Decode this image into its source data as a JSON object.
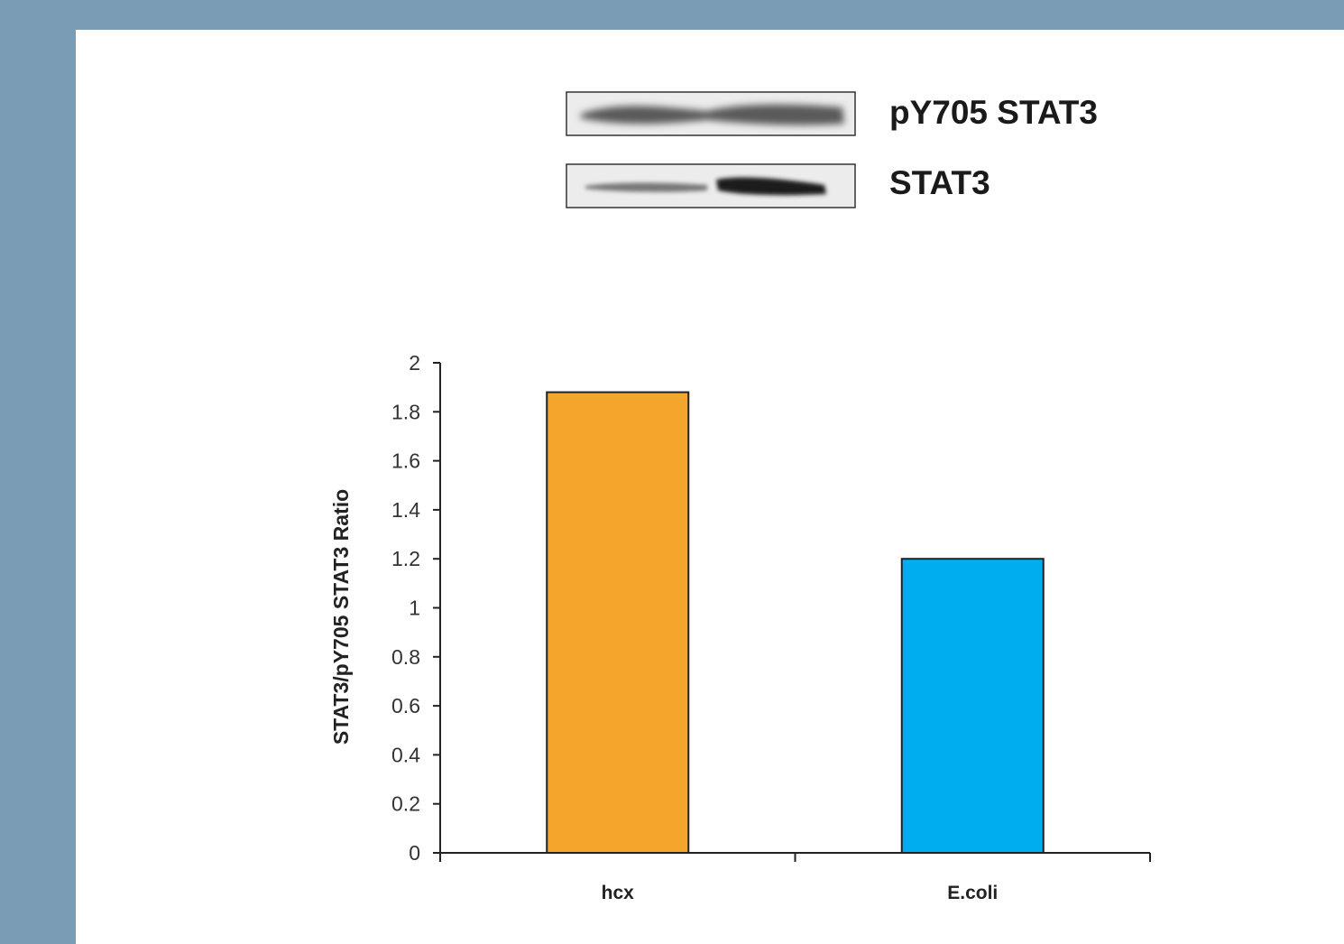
{
  "blots": {
    "labels": [
      "pY705 STAT3",
      "STAT3"
    ]
  },
  "colors": {
    "background": "#7a9db5",
    "hcx": "#f4a52c",
    "ecoli": "#00aeef"
  },
  "chart_data": {
    "type": "bar",
    "categories": [
      "hcx",
      "E.coli"
    ],
    "values": [
      1.88,
      1.2
    ],
    "ylabel": "STAT3/pY705 STAT3 Ratio",
    "xlabel": "",
    "ylim": [
      0,
      2
    ],
    "yticks": [
      "0",
      "0.2",
      "0.4",
      "0.6",
      "0.8",
      "1",
      "1.2",
      "1.4",
      "1.6",
      "1.8",
      "2"
    ],
    "grid": false,
    "legend": "none"
  }
}
